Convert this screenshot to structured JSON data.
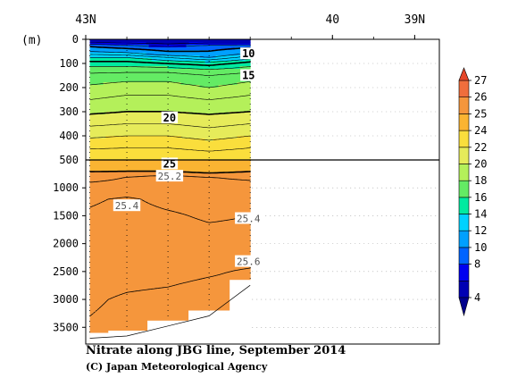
{
  "chart_data": {
    "type": "heatmap",
    "title": "Nitrate along JBG line, September 2014",
    "credit": "(C) Japan Meteorological Agency",
    "xlabel": "",
    "ylabel": "(m)",
    "x_ticks": [
      "43N",
      "40",
      "39N"
    ],
    "x_range_deg_N": [
      43.0,
      38.7
    ],
    "station_latitudes": [
      42.95,
      42.5,
      42.0,
      41.5,
      41.0
    ],
    "bottom_depth_m": [
      3600,
      3560,
      3380,
      3200,
      2650
    ],
    "upper_panel": {
      "ylim": [
        0,
        500
      ],
      "y_ticks": [
        0,
        100,
        200,
        300,
        400,
        500
      ],
      "depths_m": [
        0,
        10,
        20,
        30,
        50,
        75,
        100,
        125,
        150,
        200,
        250,
        300,
        400,
        500
      ],
      "values": [
        [
          4,
          4,
          4,
          4,
          4
        ],
        [
          5,
          5,
          5,
          5,
          5
        ],
        [
          8,
          7,
          6,
          7,
          7
        ],
        [
          10,
          9,
          8,
          9,
          9.5
        ],
        [
          12,
          11.5,
          10,
          10,
          11.5
        ],
        [
          14,
          14,
          13,
          12,
          13.5
        ],
        [
          15.5,
          15.5,
          15,
          14.5,
          15.5
        ],
        [
          16.5,
          16.5,
          16.5,
          16,
          16.5
        ],
        [
          17.3,
          17.5,
          17.5,
          17,
          17.5
        ],
        [
          18.2,
          18.5,
          18.5,
          18,
          18.5
        ],
        [
          19,
          19.3,
          19.3,
          19,
          19.3
        ],
        [
          19.8,
          20,
          20,
          19.8,
          20
        ],
        [
          21.8,
          22,
          22,
          21.6,
          22
        ],
        [
          24,
          24,
          24,
          23.8,
          24
        ]
      ]
    },
    "lower_panel": {
      "ylim": [
        500,
        3800
      ],
      "y_ticks": [
        500,
        1000,
        1500,
        2000,
        2500,
        3000,
        3500
      ],
      "depths_m": [
        500,
        600,
        700,
        800,
        1000,
        1200,
        1500,
        2000,
        2500,
        3000,
        3600
      ],
      "values": [
        [
          24,
          24,
          24,
          24,
          24
        ],
        [
          24.6,
          24.7,
          24.7,
          24.5,
          24.6
        ],
        [
          25.0,
          25.0,
          25.0,
          24.9,
          25.0
        ],
        [
          25.1,
          25.2,
          25.25,
          25.2,
          25.15
        ],
        [
          25.3,
          25.3,
          25.3,
          25.3,
          25.3
        ],
        [
          25.38,
          25.42,
          25.36,
          25.34,
          25.36
        ],
        [
          25.42,
          25.45,
          25.42,
          25.38,
          25.4
        ],
        [
          25.48,
          25.48,
          25.48,
          25.46,
          25.46
        ],
        [
          25.52,
          25.54,
          25.55,
          25.58,
          25.62
        ],
        [
          25.58,
          25.62,
          25.64,
          25.68,
          25.68
        ],
        [
          25.62,
          25.65,
          25.66,
          25.7,
          25.7
        ]
      ]
    },
    "contours_solid": [
      4,
      6,
      8,
      10,
      12,
      13,
      14,
      15,
      16,
      17,
      18,
      19,
      20,
      21,
      22,
      23,
      24,
      25
    ],
    "contours_bold": [
      5,
      10,
      15,
      20,
      25
    ],
    "contours_dashed": [
      25.2,
      25.4,
      25.6
    ],
    "contour_labels": [
      {
        "text": "10",
        "lat": 41.02,
        "depth_m": 60,
        "panel": "upper"
      },
      {
        "text": "15",
        "lat": 41.02,
        "depth_m": 150,
        "panel": "upper"
      },
      {
        "text": "20",
        "lat": 41.98,
        "depth_m": 325,
        "panel": "upper"
      },
      {
        "text": "25",
        "lat": 41.98,
        "depth_m": 570,
        "panel": "lower"
      },
      {
        "text": "25.2",
        "lat": 41.98,
        "depth_m": 790,
        "panel": "lower"
      },
      {
        "text": "25.4",
        "lat": 42.5,
        "depth_m": 1320,
        "panel": "lower"
      },
      {
        "text": "25.4",
        "lat": 41.02,
        "depth_m": 1550,
        "panel": "lower"
      },
      {
        "text": "25.6",
        "lat": 41.02,
        "depth_m": 2320,
        "panel": "lower"
      }
    ],
    "colorbar": {
      "ticks": [
        4,
        8,
        10,
        12,
        14,
        16,
        18,
        20,
        22,
        24,
        25,
        26,
        27
      ],
      "boundaries": [
        4,
        6,
        8,
        10,
        12,
        14,
        16,
        18,
        20,
        22,
        24,
        25,
        26,
        27
      ],
      "colors": [
        "#0000b4",
        "#0000f0",
        "#0064ff",
        "#00a0ff",
        "#00d2ff",
        "#00eba0",
        "#64eb64",
        "#b4f05a",
        "#e6eb5a",
        "#fade3c",
        "#fab432",
        "#f5963c",
        "#f06e3c"
      ],
      "extend": "both",
      "under_color": "#00008c",
      "over_color": "#e64628"
    }
  }
}
